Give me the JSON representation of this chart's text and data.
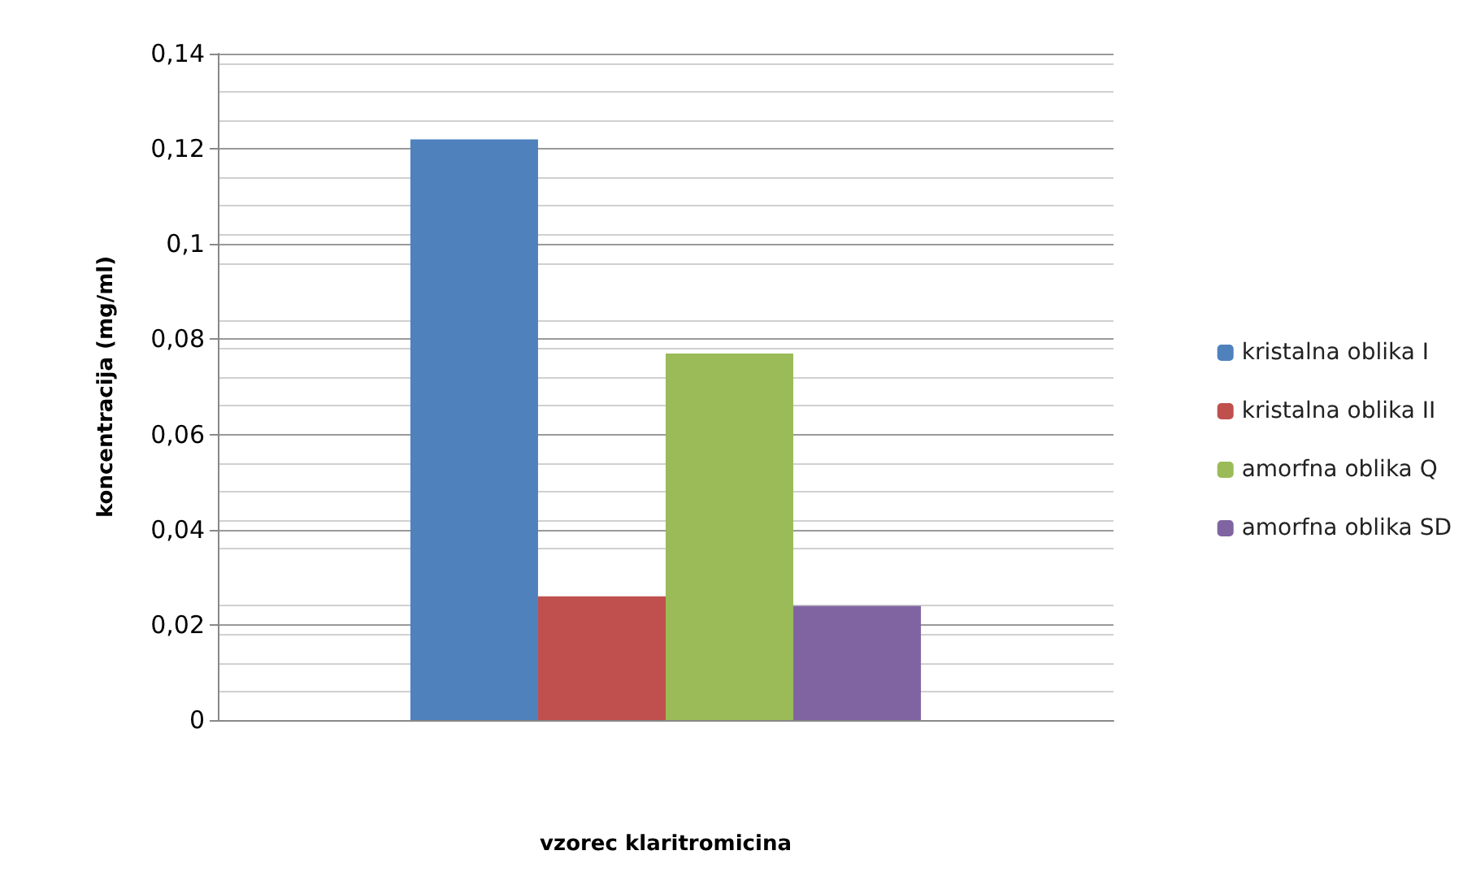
{
  "chart_data": {
    "type": "bar",
    "xlabel": "vzorec klaritromicina",
    "ylabel": "koncentracija (mg/ml)",
    "categories": [
      null
    ],
    "series": [
      {
        "name": "kristalna oblika I",
        "color": "#4f81bd",
        "values": [
          0.122
        ]
      },
      {
        "name": "kristalna oblika II",
        "color": "#c0504d",
        "values": [
          0.026
        ]
      },
      {
        "name": "amorfna oblika Q",
        "color": "#9bbb59",
        "values": [
          0.077
        ]
      },
      {
        "name": "amorfna oblika SD",
        "color": "#8064a2",
        "values": [
          0.024
        ]
      }
    ],
    "ylim": [
      0,
      0.14
    ],
    "yticks": [
      {
        "value": 0,
        "label": "0"
      },
      {
        "value": 0.02,
        "label": "0,02"
      },
      {
        "value": 0.04,
        "label": "0,04"
      },
      {
        "value": 0.06,
        "label": "0,06"
      },
      {
        "value": 0.08,
        "label": "0,08"
      },
      {
        "value": 0.1,
        "label": "0,1"
      },
      {
        "value": 0.12,
        "label": "0,12"
      },
      {
        "value": 0.14,
        "label": "0,14"
      }
    ],
    "grid": "y",
    "legend": "right"
  }
}
